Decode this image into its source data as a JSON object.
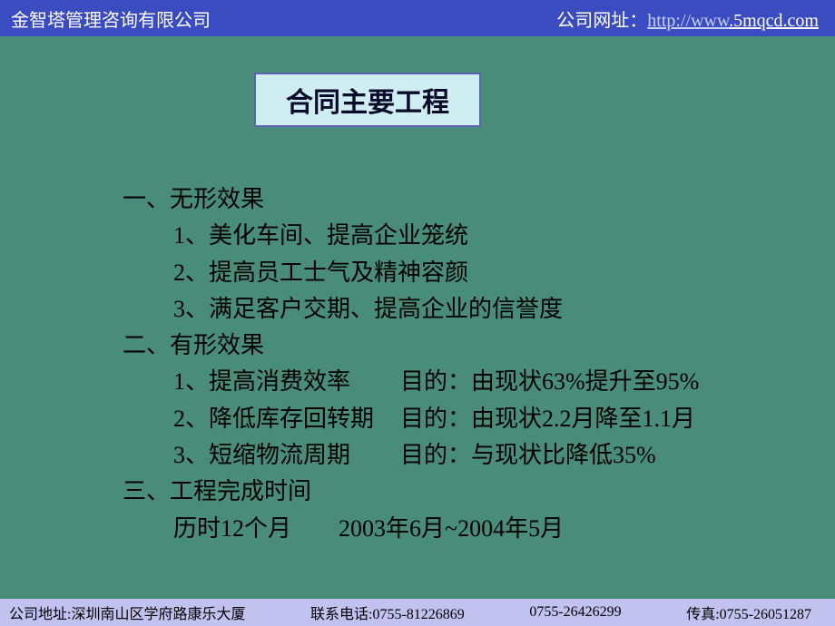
{
  "colors": {
    "header_bg": "#3a4cc0",
    "main_bg": "#4a8c7a",
    "footer_bg": "#c2c2f0",
    "title_box_bg": "#cfeef2",
    "title_box_border": "#5a64b0",
    "title_text": "#0a0a2a",
    "body_text": "#000000",
    "header_text": "#ffffff",
    "link_color": "#c7d3ff"
  },
  "typography": {
    "header_fontsize": 20,
    "title_fontsize": 30,
    "body_fontsize": 26,
    "footer_fontsize": 16,
    "line_height": 1.55
  },
  "header": {
    "company": "金智塔管理咨询有限公司",
    "url_label": "公司网址：",
    "url_part1": "http://www",
    "url_part2": ".5mqcd.com"
  },
  "title": "合同主要工程",
  "sections": [
    {
      "heading": "一、无形效果",
      "items": [
        {
          "text": "1、美化车间、提高企业笼统"
        },
        {
          "text": "2、提高员工士气及精神容颜"
        },
        {
          "text": "3、满足客户交期、提高企业的信誉度"
        }
      ]
    },
    {
      "heading": "二、有形效果",
      "items": [
        {
          "text": "1、提高消费效率",
          "goal": "目的：由现状63%提升至95%"
        },
        {
          "text": "2、降低库存回转期",
          "goal": "目的：由现状2.2月降至1.1月"
        },
        {
          "text": "3、短缩物流周期",
          "goal": "目的：与现状比降低35%"
        }
      ]
    },
    {
      "heading": "三、工程完成时间",
      "items": [
        {
          "text": "历时12个月　　2003年6月~2004年5月"
        }
      ]
    }
  ],
  "footer": {
    "address": "公司地址:深圳南山区学府路康乐大厦",
    "phone1": "联系电话:0755-81226869",
    "phone2": "0755-26426299",
    "fax": "传真:0755-26051287"
  }
}
